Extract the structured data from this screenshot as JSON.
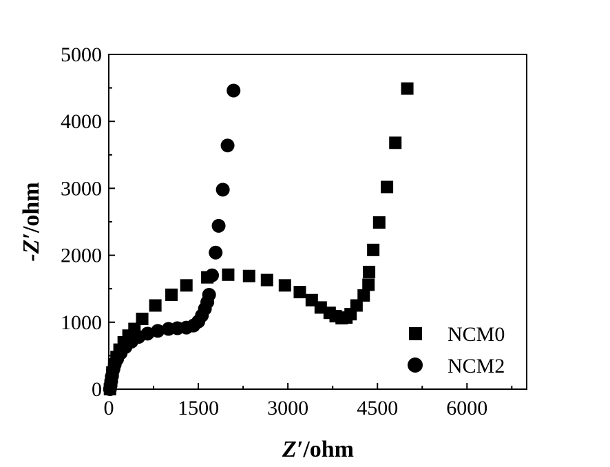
{
  "chart_data": {
    "type": "scatter",
    "xlabel": "Z′/ohm",
    "xlabel_var": "Z′",
    "xlabel_unit": "/ohm",
    "ylabel": "-Z′/ohm",
    "ylabel_var": "-Z′",
    "ylabel_unit": "/ohm",
    "xlim": [
      0,
      7000
    ],
    "ylim": [
      0,
      5000
    ],
    "xticks": [
      0,
      1500,
      3000,
      4500,
      6000
    ],
    "yticks": [
      0,
      1000,
      2000,
      3000,
      4000,
      5000
    ],
    "grid": false,
    "legend_position": "lower-right",
    "series": [
      {
        "name": "NCM0",
        "marker": "square",
        "color": "#000000",
        "points": [
          [
            20,
            0
          ],
          [
            40,
            120
          ],
          [
            60,
            250
          ],
          [
            90,
            370
          ],
          [
            130,
            480
          ],
          [
            180,
            590
          ],
          [
            250,
            700
          ],
          [
            330,
            800
          ],
          [
            430,
            900
          ],
          [
            560,
            1050
          ],
          [
            780,
            1250
          ],
          [
            1050,
            1410
          ],
          [
            1300,
            1550
          ],
          [
            1650,
            1670
          ],
          [
            2000,
            1710
          ],
          [
            2350,
            1690
          ],
          [
            2650,
            1630
          ],
          [
            2950,
            1550
          ],
          [
            3200,
            1450
          ],
          [
            3400,
            1330
          ],
          [
            3550,
            1220
          ],
          [
            3700,
            1140
          ],
          [
            3800,
            1090
          ],
          [
            3900,
            1060
          ],
          [
            3980,
            1070
          ],
          [
            4050,
            1120
          ],
          [
            4150,
            1250
          ],
          [
            4270,
            1400
          ],
          [
            4350,
            1560
          ],
          [
            4360,
            1750
          ],
          [
            4430,
            2080
          ],
          [
            4530,
            2490
          ],
          [
            4660,
            3020
          ],
          [
            4800,
            3680
          ],
          [
            5000,
            4490
          ]
        ]
      },
      {
        "name": "NCM2",
        "marker": "circle",
        "color": "#000000",
        "points": [
          [
            20,
            0
          ],
          [
            30,
            60
          ],
          [
            40,
            120
          ],
          [
            55,
            200
          ],
          [
            70,
            280
          ],
          [
            100,
            370
          ],
          [
            140,
            450
          ],
          [
            200,
            540
          ],
          [
            280,
            630
          ],
          [
            380,
            710
          ],
          [
            500,
            780
          ],
          [
            650,
            830
          ],
          [
            820,
            870
          ],
          [
            1000,
            900
          ],
          [
            1150,
            910
          ],
          [
            1300,
            920
          ],
          [
            1420,
            950
          ],
          [
            1500,
            1010
          ],
          [
            1560,
            1100
          ],
          [
            1610,
            1200
          ],
          [
            1650,
            1300
          ],
          [
            1680,
            1410
          ],
          [
            1730,
            1700
          ],
          [
            1790,
            2040
          ],
          [
            1840,
            2440
          ],
          [
            1910,
            2980
          ],
          [
            1990,
            3640
          ],
          [
            2090,
            4460
          ]
        ]
      }
    ]
  }
}
